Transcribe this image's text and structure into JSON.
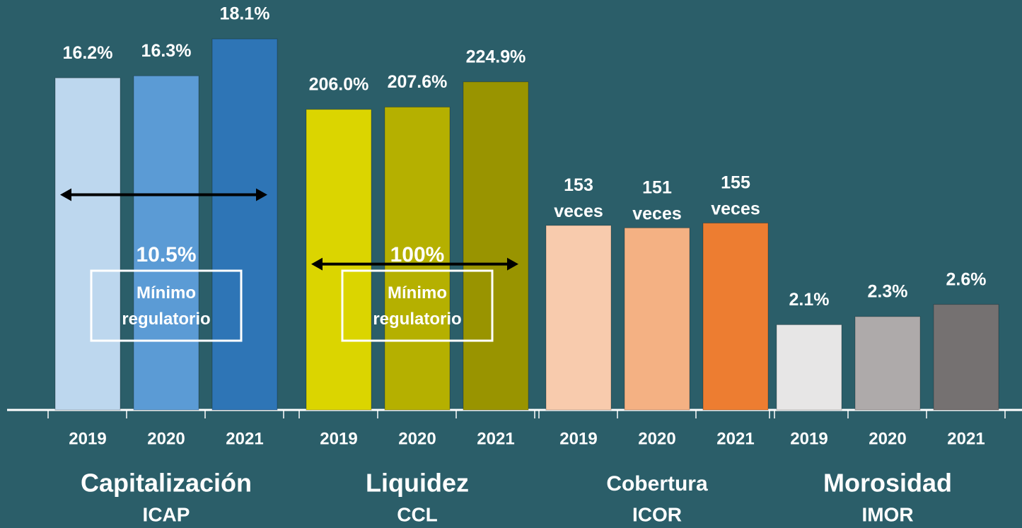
{
  "chart_data": [
    {
      "type": "bar",
      "title": "Capitalización",
      "subtitle": "ICAP",
      "categories": [
        "2019",
        "2020",
        "2021"
      ],
      "values": [
        16.2,
        16.3,
        18.1
      ],
      "value_labels": [
        "16.2%",
        "16.3%",
        "18.1%"
      ],
      "colors": [
        "#bdd7ee",
        "#5b9bd5",
        "#2e75b6"
      ],
      "ylim": [
        0,
        20
      ],
      "threshold": {
        "value": 10.5,
        "label": "10.5%",
        "text": "Mínimo regulatorio"
      }
    },
    {
      "type": "bar",
      "title": "Liquidez",
      "subtitle": "CCL",
      "categories": [
        "2019",
        "2020",
        "2021"
      ],
      "values": [
        206.0,
        207.6,
        224.9
      ],
      "value_labels": [
        "206.0%",
        "207.6%",
        "224.9%"
      ],
      "colors": [
        "#dbd500",
        "#b5b000",
        "#999400"
      ],
      "ylim": [
        0,
        281
      ],
      "threshold": {
        "value": 100,
        "label": "100%",
        "text": "Mínimo regulatorio"
      }
    },
    {
      "type": "bar",
      "title": "Cobertura",
      "subtitle": "ICOR",
      "categories": [
        "2019",
        "2020",
        "2021"
      ],
      "values": [
        153,
        151,
        155
      ],
      "value_labels": [
        "153 veces",
        "151 veces",
        "155 veces"
      ],
      "colors": [
        "#f8cbad",
        "#f4b183",
        "#ed7d31"
      ],
      "ylim": [
        0,
        340
      ]
    },
    {
      "type": "bar",
      "title": "Morosidad",
      "subtitle": "IMOR",
      "categories": [
        "2019",
        "2020",
        "2021"
      ],
      "values": [
        2.1,
        2.3,
        2.6
      ],
      "value_labels": [
        "2.1%",
        "2.3%",
        "2.6%"
      ],
      "colors": [
        "#e7e6e6",
        "#aeaaaa",
        "#757171"
      ],
      "ylim": [
        0,
        10.1
      ]
    }
  ]
}
